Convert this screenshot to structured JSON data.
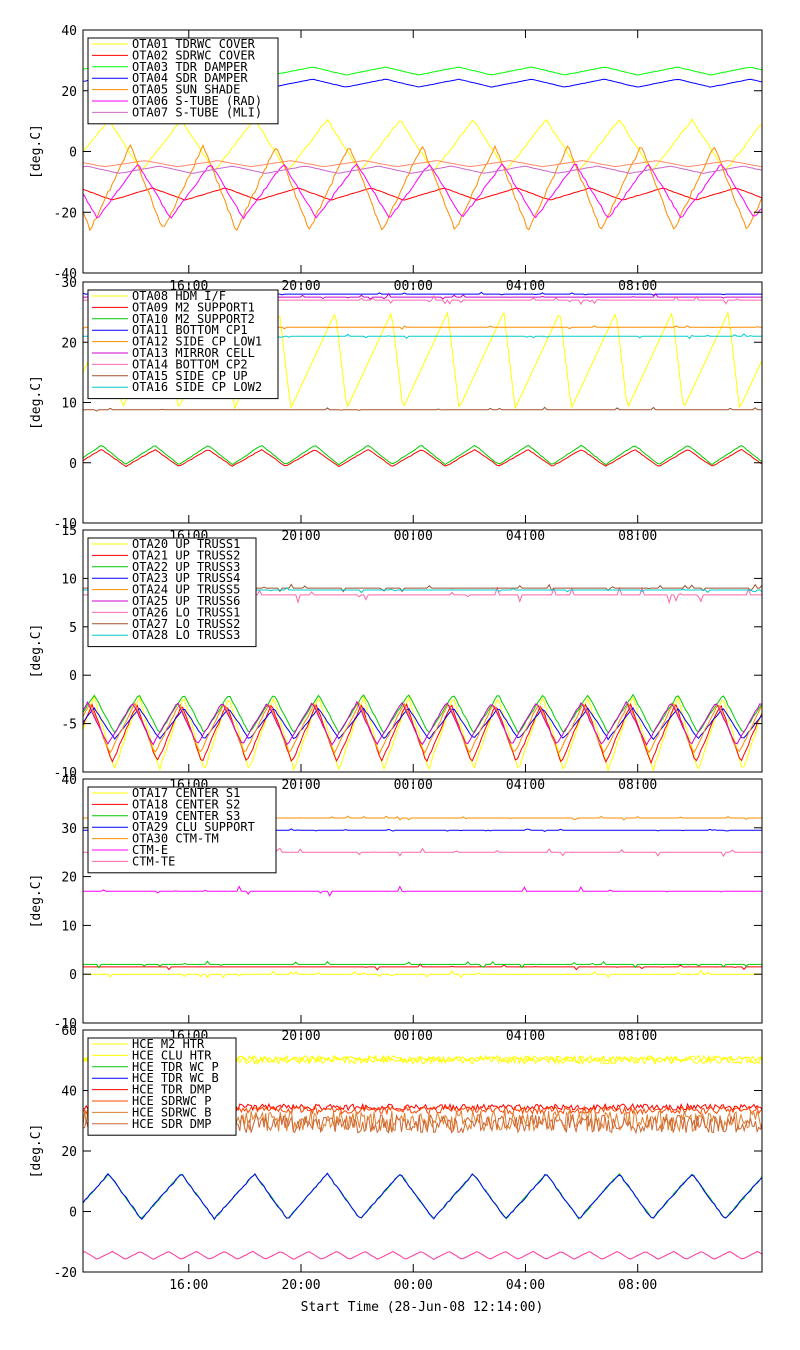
{
  "figure": {
    "xlabel": "Start Time (28-Jun-08 12:14:00)"
  },
  "chart_data": [
    {
      "type": "line",
      "ylabel": "[deg.C]",
      "ylim": [
        -40,
        40
      ],
      "yticks": [
        "40",
        "20",
        "0",
        "-20",
        "-40"
      ],
      "xticks": [
        "16:00",
        "20:00",
        "00:00",
        "04:00",
        "08:00"
      ],
      "legend_position": "top-left",
      "series": [
        {
          "name": "OTA01 TDRWC COVER",
          "color": "#ffff00",
          "kind": "wave",
          "base": 2,
          "amp": 8.5,
          "period": 2.6,
          "phase": 0.2
        },
        {
          "name": "OTA02 SDRWC COVER",
          "color": "#ff0000",
          "kind": "wave",
          "base": -14,
          "amp": 2,
          "period": 2.6,
          "phase": 0.6
        },
        {
          "name": "OTA03 TDR DAMPER",
          "color": "#00ff00",
          "kind": "wave",
          "base": 26.5,
          "amp": 1.3,
          "period": 2.6,
          "phase": 0.4
        },
        {
          "name": "OTA04 SDR DAMPER",
          "color": "#0000ff",
          "kind": "wave",
          "base": 22.5,
          "amp": 1.3,
          "period": 2.6,
          "phase": 0.4
        },
        {
          "name": "OTA05 SUN SHADE",
          "color": "#ff8c00",
          "kind": "wave",
          "base": -12,
          "amp": 14,
          "period": 2.6,
          "phase": 0.9
        },
        {
          "name": "OTA06 S-TUBE (RAD)",
          "color": "#ff00ff",
          "kind": "wave",
          "base": -13,
          "amp": 9,
          "period": 2.6,
          "phase": 0.8
        },
        {
          "name": "OTA07 S-TUBE (MLI)",
          "color": "#cc66cc",
          "kind": "wave",
          "base": -6,
          "amp": 1.2,
          "period": 2.6,
          "phase": 0.5
        },
        {
          "name": "",
          "color": "#ff8866",
          "kind": "wave",
          "base": -4,
          "amp": 1.0,
          "period": 2.6,
          "phase": 0.7
        }
      ]
    },
    {
      "type": "line",
      "ylabel": "[deg.C]",
      "ylim": [
        -10,
        30
      ],
      "yticks": [
        "30",
        "20",
        "10",
        "0",
        "-10"
      ],
      "xticks": [
        "16:00",
        "20:00",
        "00:00",
        "04:00",
        "08:00"
      ],
      "legend_position": "top-left",
      "series": [
        {
          "name": "OTA08 HDM I/F",
          "color": "#ffff00",
          "kind": "saw",
          "base": 17,
          "amp": 8,
          "period": 2.0,
          "phase": 0.3
        },
        {
          "name": "OTA09 M2 SUPPORT1",
          "color": "#ff0000",
          "kind": "wave",
          "base": 0.8,
          "amp": 1.4,
          "period": 1.9,
          "phase": 0.2
        },
        {
          "name": "OTA10 M2 SUPPORT2",
          "color": "#00cc00",
          "kind": "wave",
          "base": 1.3,
          "amp": 1.6,
          "period": 1.9,
          "phase": 0.2
        },
        {
          "name": "OTA11 BOTTOM CP1",
          "color": "#0000ff",
          "kind": "flat",
          "base": 28,
          "amp": 0.3,
          "period": 3,
          "phase": 0
        },
        {
          "name": "OTA12 SIDE CP LOW1",
          "color": "#ff8c00",
          "kind": "flat",
          "base": 22.5,
          "amp": 0.3,
          "period": 3,
          "phase": 0
        },
        {
          "name": "OTA13 MIRROR CELL",
          "color": "#cc00cc",
          "kind": "flat",
          "base": 27.5,
          "amp": 0.6,
          "period": 3,
          "phase": 0
        },
        {
          "name": "OTA14 BOTTOM CP2",
          "color": "#ff66aa",
          "kind": "flat",
          "base": 27,
          "amp": 0.8,
          "period": 3,
          "phase": 0
        },
        {
          "name": "OTA15 SIDE CP UP",
          "color": "#a0522d",
          "kind": "flat",
          "base": 8.8,
          "amp": 0.4,
          "period": 3,
          "phase": 0
        },
        {
          "name": "OTA16 SIDE CP LOW2",
          "color": "#00cccc",
          "kind": "flat",
          "base": 21,
          "amp": 0.4,
          "period": 3,
          "phase": 0
        }
      ]
    },
    {
      "type": "line",
      "ylabel": "[deg.C]",
      "ylim": [
        -10,
        15
      ],
      "yticks": [
        "15",
        "10",
        "5",
        "0",
        "-5",
        "-10"
      ],
      "xticks": [
        "16:00",
        "20:00",
        "00:00",
        "04:00",
        "08:00"
      ],
      "legend_position": "top-left",
      "series": [
        {
          "name": "OTA20 UP TRUSS1",
          "color": "#ffff00",
          "kind": "wave",
          "base": -6,
          "amp": 3.8,
          "period": 1.6,
          "phase": 0.3
        },
        {
          "name": "OTA21 UP TRUSS2",
          "color": "#ff0000",
          "kind": "wave",
          "base": -6,
          "amp": 3.0,
          "period": 1.6,
          "phase": 0.35
        },
        {
          "name": "OTA22 UP TRUSS3",
          "color": "#00cc00",
          "kind": "wave",
          "base": -4,
          "amp": 2.0,
          "period": 1.6,
          "phase": 0.3
        },
        {
          "name": "OTA23 UP TRUSS4",
          "color": "#0000ff",
          "kind": "wave",
          "base": -5,
          "amp": 1.6,
          "period": 1.6,
          "phase": 0.3
        },
        {
          "name": "OTA24 UP TRUSS5",
          "color": "#ff8c00",
          "kind": "wave",
          "base": -5.5,
          "amp": 2.6,
          "period": 1.6,
          "phase": 0.4
        },
        {
          "name": "OTA25 UP TRUSS6",
          "color": "#cc00cc",
          "kind": "wave",
          "base": -5,
          "amp": 2.2,
          "period": 1.6,
          "phase": 0.45
        },
        {
          "name": "OTA26 LO TRUSS1",
          "color": "#ff66aa",
          "kind": "flat",
          "base": 8.3,
          "amp": 0.8,
          "period": 3,
          "phase": 0
        },
        {
          "name": "OTA27 LO TRUSS2",
          "color": "#a0522d",
          "kind": "flat",
          "base": 9.0,
          "amp": 0.4,
          "period": 3,
          "phase": 0
        },
        {
          "name": "OTA28 LO TRUSS3",
          "color": "#00cccc",
          "kind": "flat",
          "base": 8.8,
          "amp": 0.3,
          "period": 3,
          "phase": 0
        }
      ]
    },
    {
      "type": "line",
      "ylabel": "[deg.C]",
      "ylim": [
        -10,
        40
      ],
      "yticks": [
        "40",
        "30",
        "20",
        "10",
        "0",
        "-10"
      ],
      "xticks": [
        "16:00",
        "20:00",
        "00:00",
        "04:00",
        "08:00"
      ],
      "legend_position": "top-left",
      "series": [
        {
          "name": "OTA17 CENTER S1",
          "color": "#ffff00",
          "kind": "flat",
          "base": 0,
          "amp": 0.8,
          "period": 3,
          "phase": 0
        },
        {
          "name": "OTA18 CENTER S2",
          "color": "#ff0000",
          "kind": "flat",
          "base": 1.5,
          "amp": 0.6,
          "period": 3,
          "phase": 0
        },
        {
          "name": "OTA19 CENTER S3",
          "color": "#00cc00",
          "kind": "flat",
          "base": 2,
          "amp": 0.7,
          "period": 3,
          "phase": 0
        },
        {
          "name": "OTA29 CLU SUPPORT",
          "color": "#0000ff",
          "kind": "flat",
          "base": 29.5,
          "amp": 0.3,
          "period": 3,
          "phase": 0
        },
        {
          "name": "OTA30 CTM-TM",
          "color": "#ff8c00",
          "kind": "flat",
          "base": 32,
          "amp": 0.4,
          "period": 3,
          "phase": 0
        },
        {
          "name": "CTM-E",
          "color": "#ff00ff",
          "kind": "flat",
          "base": 17,
          "amp": 1.0,
          "period": 3,
          "phase": 0
        },
        {
          "name": "CTM-TE",
          "color": "#ff66aa",
          "kind": "flat",
          "base": 25,
          "amp": 0.8,
          "period": 3,
          "phase": 0
        }
      ]
    },
    {
      "type": "line",
      "ylabel": "[deg.C]",
      "ylim": [
        -20,
        60
      ],
      "yticks": [
        "60",
        "40",
        "20",
        "0",
        "-20"
      ],
      "xticks": [
        "16:00",
        "20:00",
        "00:00",
        "04:00",
        "08:00"
      ],
      "legend_position": "top-left",
      "series": [
        {
          "name": "HCE M2 HTR",
          "color": "#ffff00",
          "kind": "noise",
          "base": 50,
          "amp": 1.2,
          "period": 3,
          "phase": 0
        },
        {
          "name": "HCE CLU HTR",
          "color": "#ffff00",
          "kind": "noise",
          "base": 50.5,
          "amp": 1.0,
          "period": 3,
          "phase": 0
        },
        {
          "name": "HCE TDR WC P",
          "color": "#00cc00",
          "kind": "wave",
          "base": 5,
          "amp": 7.5,
          "period": 2.6,
          "phase": 0.2
        },
        {
          "name": "HCE TDR WC B",
          "color": "#0000ff",
          "kind": "wave",
          "base": 5,
          "amp": 7.5,
          "period": 2.6,
          "phase": 0.2
        },
        {
          "name": "HCE TDR DMP",
          "color": "#ff0000",
          "kind": "noise",
          "base": 34.5,
          "amp": 1.0,
          "period": 3,
          "phase": 0
        },
        {
          "name": "HCE SDRWC P",
          "color": "#ff4400",
          "kind": "noise",
          "base": 33.5,
          "amp": 1.2,
          "period": 3,
          "phase": 0
        },
        {
          "name": "HCE SDRWC B",
          "color": "#e08030",
          "kind": "noise",
          "base": 30,
          "amp": 3.5,
          "period": 3,
          "phase": 0
        },
        {
          "name": "HCE SDR DMP",
          "color": "#cc6633",
          "kind": "noise",
          "base": 29,
          "amp": 3.0,
          "period": 3,
          "phase": 0
        },
        {
          "name": "",
          "color": "#ff3399",
          "kind": "wave",
          "base": -14.5,
          "amp": 1.3,
          "period": 1.0,
          "phase": 0.5
        }
      ]
    }
  ]
}
